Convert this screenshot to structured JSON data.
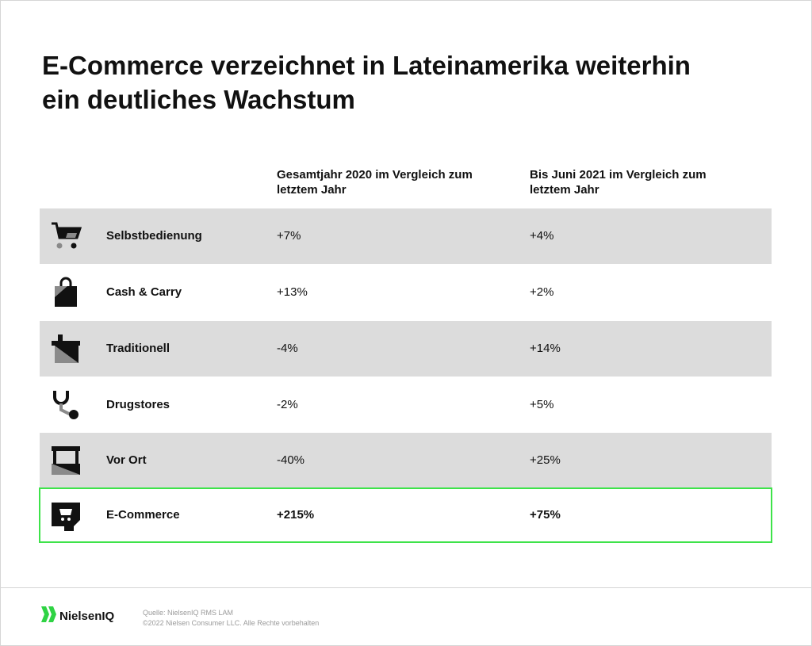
{
  "title": "E-Commerce verzeichnet in Lateinamerika weiterhin ein deutliches Wachstum",
  "chart_data": {
    "type": "table",
    "columns": [
      "Gesamtjahr 2020 im Vergleich zum letztem Jahr",
      "Bis Juni 2021 im Vergleich zum letztem Jahr"
    ],
    "rows": [
      {
        "label": "Selbstbedienung",
        "icon": "shopping-cart-icon",
        "v2020": "+7%",
        "v2021": "+4%"
      },
      {
        "label": "Cash & Carry",
        "icon": "shopping-bag-icon",
        "v2020": "+13%",
        "v2021": "+2%"
      },
      {
        "label": "Traditionell",
        "icon": "store-front-icon",
        "v2020": "-4%",
        "v2021": "+14%"
      },
      {
        "label": "Drugstores",
        "icon": "stethoscope-icon",
        "v2020": "-2%",
        "v2021": "+5%"
      },
      {
        "label": "Vor Ort",
        "icon": "market-stall-icon",
        "v2020": "-40%",
        "v2021": "+25%"
      },
      {
        "label": "E-Commerce",
        "icon": "online-cart-icon",
        "v2020": "+215%",
        "v2021": "+75%"
      }
    ],
    "highlight_row": "E-Commerce"
  },
  "footer": {
    "brand": "NielsenIQ",
    "source": "Quelle: NielsenIQ RMS LAM",
    "copyright": "©2022 Nielsen Consumer LLC. Alle Rechte vorbehalten"
  },
  "colors": {
    "row_shade": "#dcdcdc",
    "highlight_border": "#3ee34a",
    "brand_green": "#2fd344"
  }
}
